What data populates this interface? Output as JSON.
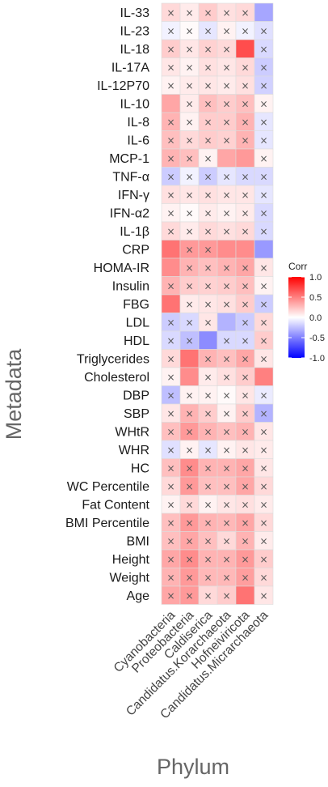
{
  "chart_data": {
    "type": "heatmap",
    "xlabel": "Phylum",
    "ylabel": "Metadata",
    "x_categories": [
      "Cyanobacteria",
      "Proteobacteria",
      "Caldiserica",
      "Candidatus.Korarchaeota",
      "Hofneiviricota",
      "Candidatus.Micrarchaeota"
    ],
    "y_categories": [
      "IL-33",
      "IL-23",
      "IL-18",
      "IL-17A",
      "IL-12P70",
      "IL-10",
      "IL-8",
      "IL-6",
      "MCP-1",
      "TNF-α",
      "IFN-γ",
      "IFN-α2",
      "IL-1β",
      "CRP",
      "HOMA-IR",
      "Insulin",
      "FBG",
      "LDL",
      "HDL",
      "Triglycerides",
      "Cholesterol",
      "DBP",
      "SBP",
      "WHtR",
      "WHR",
      "HC",
      "WC Percentile",
      "Fat Content",
      "BMI Percentile",
      "BMI",
      "Height",
      "Weight",
      "Age"
    ],
    "values": [
      [
        0.15,
        0.08,
        0.2,
        0.12,
        0.15,
        -0.35
      ],
      [
        -0.05,
        0.02,
        -0.1,
        0.05,
        -0.05,
        -0.12
      ],
      [
        0.2,
        0.1,
        0.18,
        0.15,
        0.7,
        -0.15
      ],
      [
        0.1,
        0.05,
        0.12,
        0.1,
        0.15,
        -0.2
      ],
      [
        0.05,
        0.08,
        0.1,
        0.08,
        0.12,
        -0.18
      ],
      [
        0.35,
        0.08,
        0.25,
        0.2,
        0.25,
        0.05
      ],
      [
        0.3,
        0.05,
        0.2,
        0.2,
        0.3,
        -0.1
      ],
      [
        0.25,
        0.15,
        0.2,
        0.18,
        0.3,
        -0.1
      ],
      [
        0.3,
        0.25,
        0.05,
        0.35,
        0.4,
        0.05
      ],
      [
        -0.2,
        -0.05,
        -0.2,
        -0.1,
        -0.15,
        -0.15
      ],
      [
        0.12,
        0.1,
        0.12,
        0.1,
        0.1,
        -0.1
      ],
      [
        0.05,
        0.02,
        0.08,
        0.05,
        0.08,
        -0.15
      ],
      [
        0.15,
        0.08,
        0.15,
        0.12,
        0.15,
        -0.15
      ],
      [
        0.55,
        0.4,
        0.4,
        0.45,
        0.45,
        -0.4
      ],
      [
        0.45,
        0.3,
        0.25,
        0.3,
        0.35,
        0.1
      ],
      [
        0.3,
        0.2,
        0.18,
        0.2,
        0.25,
        0.05
      ],
      [
        0.55,
        0.08,
        0.1,
        0.12,
        0.2,
        -0.2
      ],
      [
        -0.2,
        -0.15,
        0.1,
        -0.3,
        -0.2,
        0.15
      ],
      [
        -0.15,
        -0.25,
        -0.45,
        -0.15,
        -0.15,
        0.2
      ],
      [
        0.15,
        0.55,
        0.3,
        0.25,
        0.35,
        0.1
      ],
      [
        0.05,
        0.45,
        0.08,
        0.12,
        0.2,
        0.5
      ],
      [
        -0.25,
        0.05,
        0.05,
        0.02,
        0.1,
        -0.08
      ],
      [
        0.1,
        0.3,
        0.2,
        0.05,
        0.2,
        -0.3
      ],
      [
        0.25,
        0.4,
        0.3,
        0.25,
        0.3,
        0.1
      ],
      [
        -0.12,
        0.05,
        -0.1,
        0.05,
        0.1,
        0.08
      ],
      [
        0.25,
        0.45,
        0.3,
        0.3,
        0.35,
        0.1
      ],
      [
        0.15,
        0.4,
        0.25,
        0.25,
        0.35,
        0.15
      ],
      [
        0.05,
        0.15,
        0.05,
        0.1,
        0.12,
        0.08
      ],
      [
        0.25,
        0.4,
        0.3,
        0.28,
        0.35,
        0.15
      ],
      [
        0.25,
        0.35,
        0.25,
        0.15,
        0.3,
        0.08
      ],
      [
        0.35,
        0.45,
        0.3,
        0.3,
        0.4,
        0.2
      ],
      [
        0.3,
        0.4,
        0.28,
        0.28,
        0.38,
        0.15
      ],
      [
        0.35,
        0.4,
        0.15,
        0.2,
        0.55,
        0.1
      ]
    ],
    "crosses": [
      [
        1,
        1,
        1,
        1,
        1,
        0
      ],
      [
        1,
        1,
        1,
        1,
        1,
        1
      ],
      [
        1,
        1,
        1,
        1,
        0,
        1
      ],
      [
        1,
        1,
        1,
        1,
        1,
        1
      ],
      [
        1,
        1,
        1,
        1,
        1,
        1
      ],
      [
        0,
        1,
        1,
        1,
        1,
        1
      ],
      [
        1,
        1,
        1,
        1,
        1,
        1
      ],
      [
        1,
        1,
        1,
        1,
        1,
        1
      ],
      [
        1,
        1,
        1,
        0,
        0,
        1
      ],
      [
        1,
        1,
        1,
        1,
        1,
        1
      ],
      [
        1,
        1,
        1,
        1,
        1,
        1
      ],
      [
        1,
        1,
        1,
        1,
        1,
        1
      ],
      [
        1,
        1,
        1,
        1,
        1,
        1
      ],
      [
        0,
        1,
        1,
        0,
        0,
        0
      ],
      [
        0,
        1,
        1,
        1,
        1,
        1
      ],
      [
        1,
        1,
        1,
        1,
        1,
        1
      ],
      [
        0,
        1,
        1,
        1,
        1,
        1
      ],
      [
        1,
        1,
        1,
        0,
        1,
        1
      ],
      [
        1,
        1,
        0,
        1,
        1,
        1
      ],
      [
        1,
        0,
        1,
        1,
        1,
        1
      ],
      [
        1,
        0,
        1,
        1,
        1,
        0
      ],
      [
        1,
        1,
        1,
        1,
        1,
        1
      ],
      [
        1,
        1,
        1,
        1,
        1,
        1
      ],
      [
        1,
        1,
        1,
        1,
        1,
        1
      ],
      [
        1,
        1,
        1,
        1,
        1,
        1
      ],
      [
        1,
        1,
        1,
        1,
        1,
        1
      ],
      [
        1,
        1,
        1,
        1,
        1,
        1
      ],
      [
        1,
        1,
        1,
        1,
        1,
        1
      ],
      [
        1,
        1,
        1,
        1,
        1,
        1
      ],
      [
        1,
        1,
        1,
        1,
        1,
        1
      ],
      [
        1,
        1,
        1,
        1,
        1,
        1
      ],
      [
        1,
        1,
        1,
        1,
        1,
        1
      ],
      [
        1,
        1,
        1,
        1,
        0,
        1
      ]
    ],
    "legend": {
      "title": "Corr",
      "ticks": [
        "1.0",
        "0.5",
        "0.0",
        "-0.5",
        "-1.0"
      ],
      "tick_values": [
        1.0,
        0.5,
        0.0,
        -0.5,
        -1.0
      ]
    },
    "color_scale": {
      "low": "#0000ff",
      "mid": "#ffffff",
      "high": "#ff0000",
      "range": [
        -1,
        1
      ]
    },
    "grid": false
  }
}
